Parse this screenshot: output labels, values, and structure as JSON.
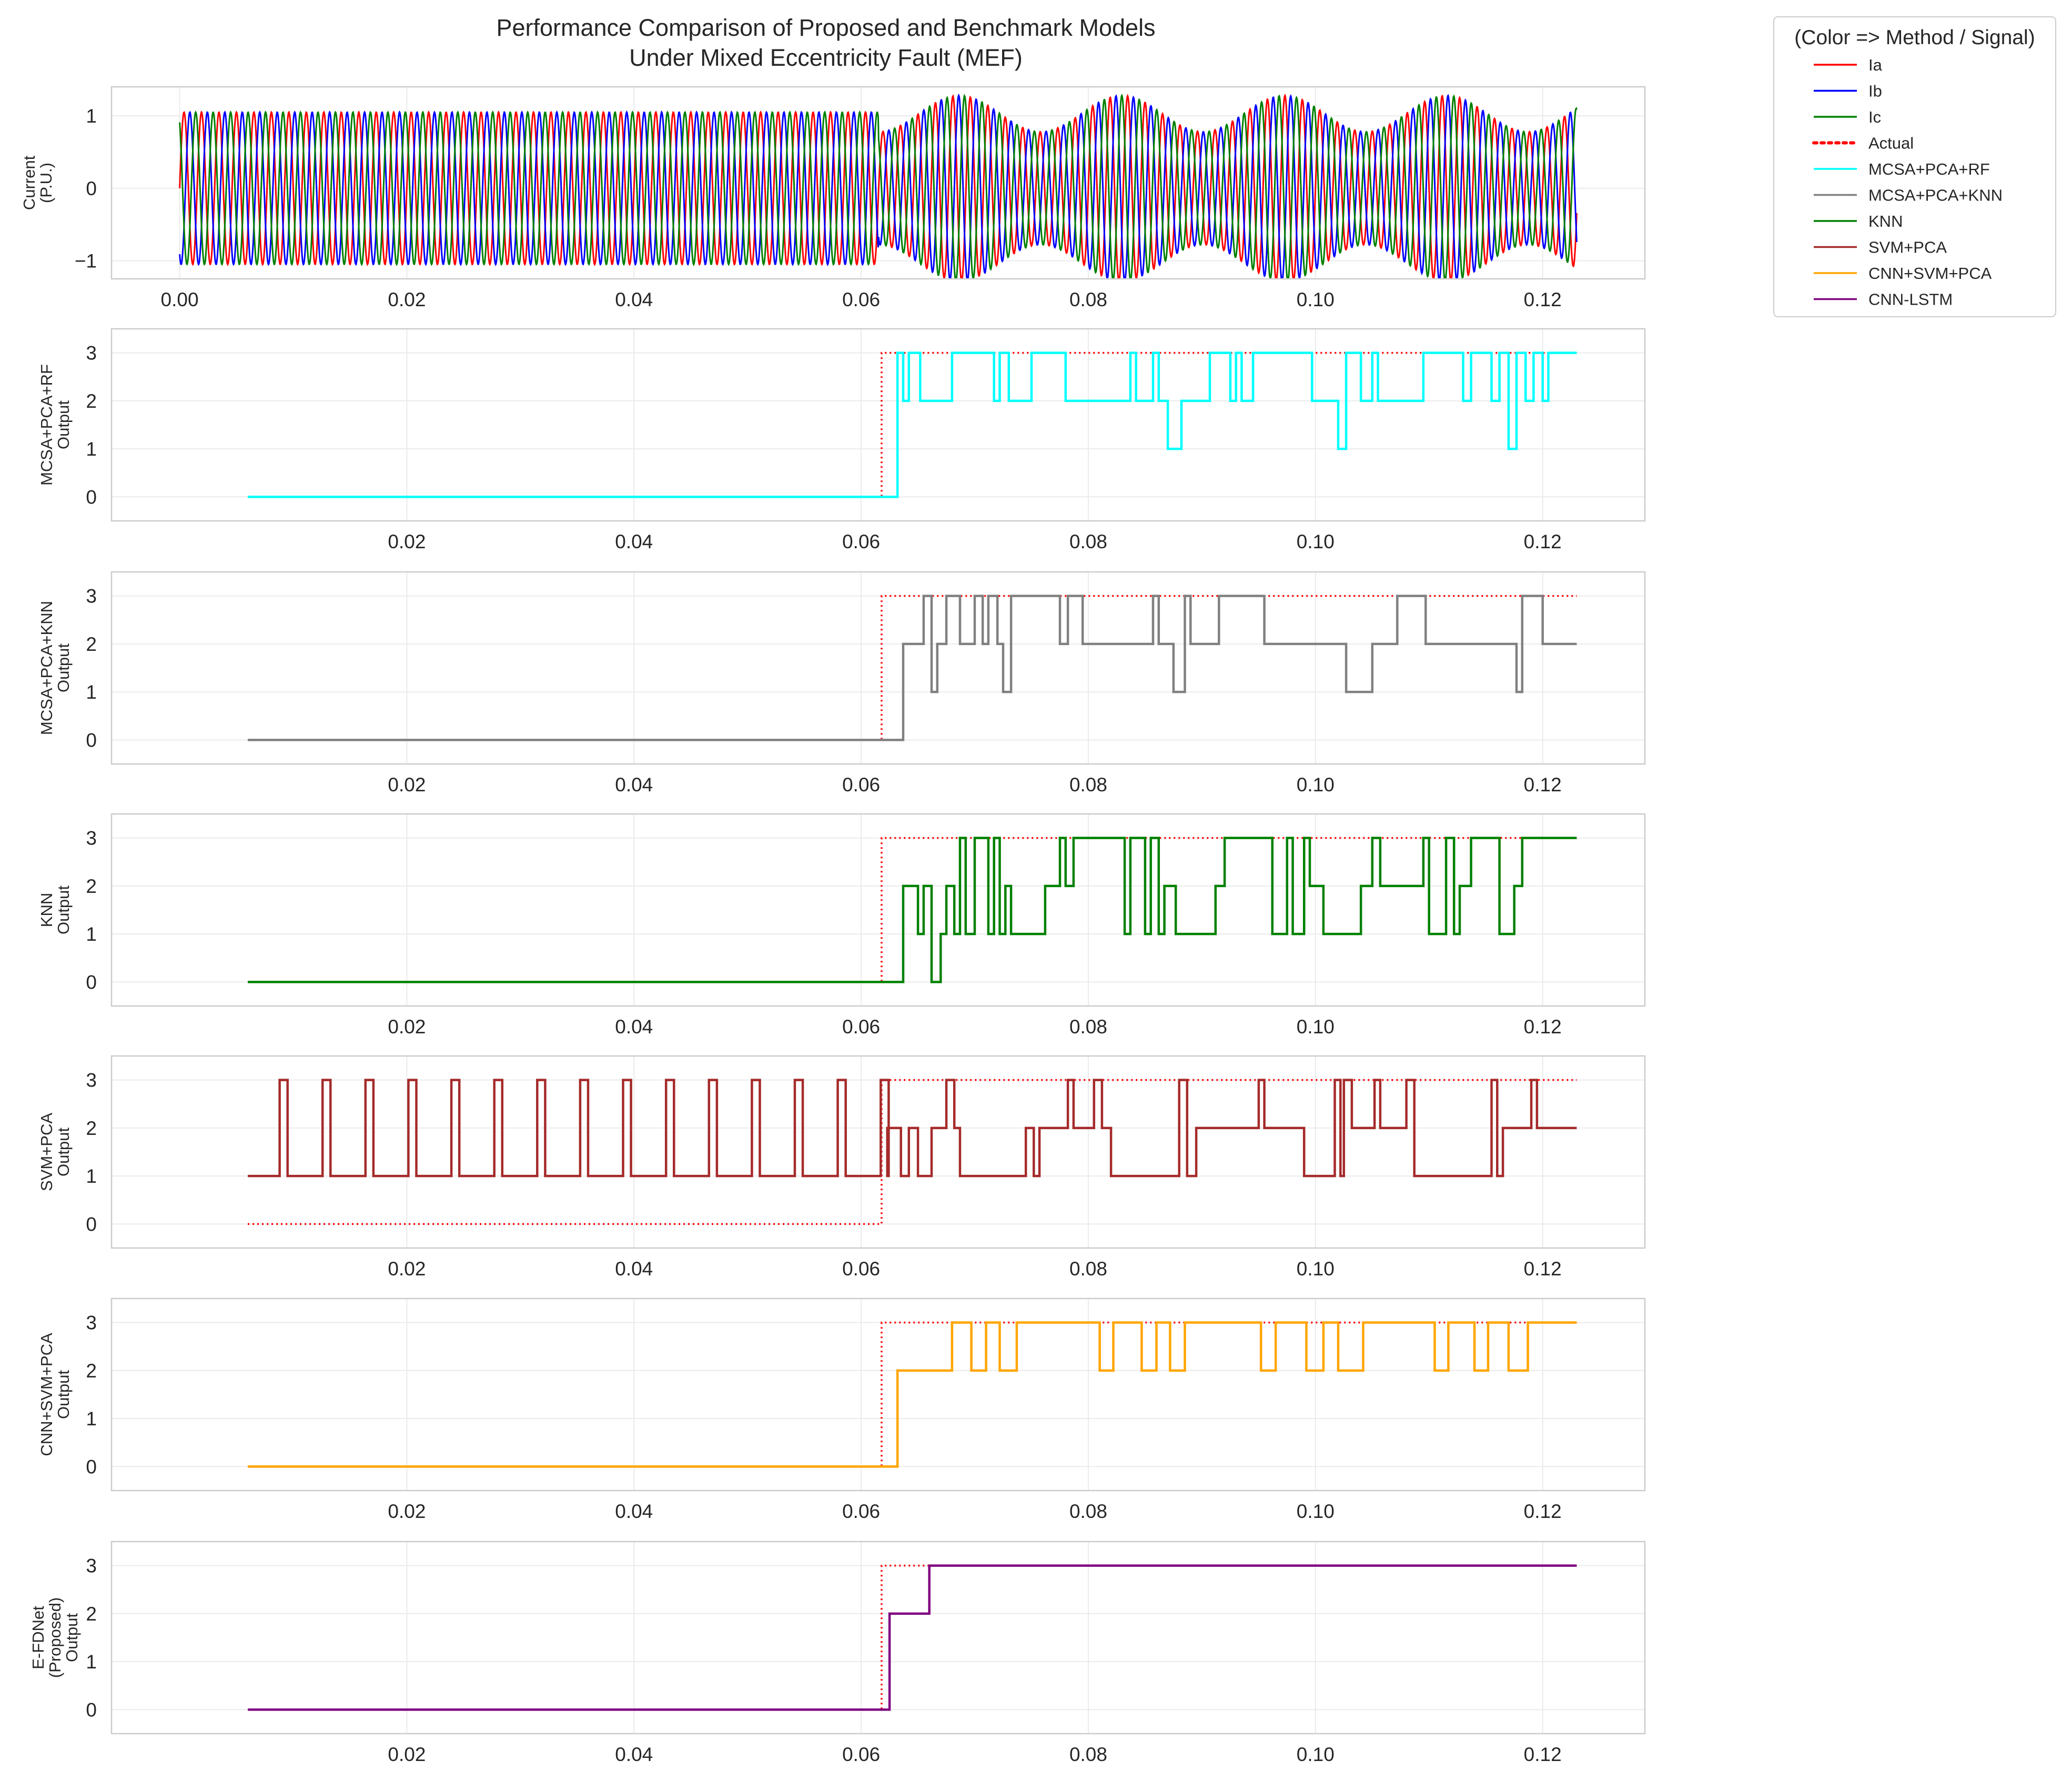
{
  "figure": {
    "title_line1": "Performance Comparison of Proposed and Benchmark Models",
    "title_line2": "Under Mixed Eccentricity Fault (MEF)"
  },
  "legend": {
    "title": "(Color => Method / Signal)",
    "entries": [
      {
        "label": "Ia",
        "color": "#ff0000",
        "style": "solid"
      },
      {
        "label": "Ib",
        "color": "#0000ff",
        "style": "solid"
      },
      {
        "label": "Ic",
        "color": "#008000",
        "style": "solid"
      },
      {
        "label": "Actual",
        "color": "#ff0000",
        "style": "dotted"
      },
      {
        "label": "MCSA+PCA+RF",
        "color": "#00ffff",
        "style": "solid"
      },
      {
        "label": "MCSA+PCA+KNN",
        "color": "#808080",
        "style": "solid"
      },
      {
        "label": "KNN",
        "color": "#008000",
        "style": "solid"
      },
      {
        "label": "SVM+PCA",
        "color": "#a52a2a",
        "style": "solid"
      },
      {
        "label": "CNN+SVM+PCA",
        "color": "#ffa500",
        "style": "solid"
      },
      {
        "label": "CNN-LSTM",
        "color": "#800080",
        "style": "solid"
      }
    ]
  },
  "chart_data": [
    {
      "type": "line",
      "id": "current",
      "ylabel_lines": [
        "Current",
        "(P.U.)"
      ],
      "xlim": [
        -0.006,
        0.129
      ],
      "ylim": [
        -1.25,
        1.4
      ],
      "xticks": [
        "0.00",
        "0.02",
        "0.04",
        "0.06",
        "0.08",
        "0.10",
        "0.12"
      ],
      "yticks": [
        "1",
        "0",
        "−1"
      ],
      "grid": true,
      "signal": {
        "x_start": 0.0,
        "x_end": 0.123,
        "frequency_hz": 650,
        "fault_onset": 0.0615,
        "healthy_amplitude": 1.05,
        "fault_amplitude_range": [
          0.78,
          1.28
        ],
        "modulation_period": 0.0143
      },
      "series": [
        {
          "name": "Ia",
          "color": "#ff0000",
          "phase_deg": -90
        },
        {
          "name": "Ib",
          "color": "#0000ff",
          "phase_deg": 150
        },
        {
          "name": "Ic",
          "color": "#008000",
          "phase_deg": 30
        }
      ]
    },
    {
      "type": "line",
      "id": "rf",
      "ylabel_lines": [
        "MCSA+PCA+RF",
        "Output"
      ],
      "color": "#00ffff",
      "xlim": [
        -0.006,
        0.129
      ],
      "ylim": [
        -0.5,
        3.5
      ],
      "xticks": [
        "0.02",
        "0.04",
        "0.06",
        "0.08",
        "0.10",
        "0.12"
      ],
      "yticks": [
        "3",
        "2",
        "1",
        "0"
      ],
      "grid": true,
      "actual": {
        "x": [
          0.006,
          0.0618,
          0.0618,
          0.123
        ],
        "y": [
          0,
          0,
          3,
          3
        ]
      },
      "x": [
        0.006,
        0.0632,
        0.0637,
        0.0642,
        0.0652,
        0.068,
        0.0717,
        0.0722,
        0.073,
        0.075,
        0.078,
        0.0837,
        0.0842,
        0.0857,
        0.0862,
        0.087,
        0.0882,
        0.0907,
        0.0925,
        0.093,
        0.0935,
        0.0945,
        0.0997,
        0.102,
        0.1027,
        0.104,
        0.105,
        0.1055,
        0.1095,
        0.113,
        0.1137,
        0.1155,
        0.1162,
        0.117,
        0.1177,
        0.1185,
        0.1192,
        0.12,
        0.1205,
        0.1215,
        0.123
      ],
      "y": [
        0,
        3,
        2,
        3,
        2,
        3,
        2,
        3,
        2,
        3,
        2,
        3,
        2,
        3,
        2,
        1,
        2,
        3,
        2,
        3,
        2,
        3,
        2,
        1,
        3,
        2,
        3,
        2,
        3,
        2,
        3,
        2,
        3,
        1,
        3,
        2,
        3,
        2,
        3,
        3,
        3
      ]
    },
    {
      "type": "line",
      "id": "knn_pca",
      "ylabel_lines": [
        "MCSA+PCA+KNN",
        "Output"
      ],
      "color": "#808080",
      "xlim": [
        -0.006,
        0.129
      ],
      "ylim": [
        -0.5,
        3.5
      ],
      "xticks": [
        "0.02",
        "0.04",
        "0.06",
        "0.08",
        "0.10",
        "0.12"
      ],
      "yticks": [
        "3",
        "2",
        "1",
        "0"
      ],
      "grid": true,
      "actual": {
        "x": [
          0.006,
          0.0618,
          0.0618,
          0.123
        ],
        "y": [
          0,
          0,
          3,
          3
        ]
      },
      "x": [
        0.006,
        0.0637,
        0.0655,
        0.0662,
        0.0667,
        0.0675,
        0.0687,
        0.07,
        0.0707,
        0.0712,
        0.072,
        0.0725,
        0.0732,
        0.0745,
        0.0775,
        0.0782,
        0.0795,
        0.0857,
        0.0862,
        0.0875,
        0.0885,
        0.089,
        0.0915,
        0.0955,
        0.1027,
        0.105,
        0.1072,
        0.1097,
        0.1177,
        0.1182,
        0.12,
        0.123
      ],
      "y": [
        0,
        2,
        3,
        1,
        2,
        3,
        2,
        3,
        2,
        3,
        2,
        1,
        3,
        3,
        2,
        3,
        2,
        3,
        2,
        1,
        3,
        2,
        3,
        2,
        1,
        2,
        3,
        2,
        1,
        3,
        2,
        2
      ]
    },
    {
      "type": "line",
      "id": "knn",
      "ylabel_lines": [
        "KNN",
        "Output"
      ],
      "color": "#008000",
      "xlim": [
        -0.006,
        0.129
      ],
      "ylim": [
        -0.5,
        3.5
      ],
      "xticks": [
        "0.02",
        "0.04",
        "0.06",
        "0.08",
        "0.10",
        "0.12"
      ],
      "yticks": [
        "3",
        "2",
        "1",
        "0"
      ],
      "grid": true,
      "actual": {
        "x": [
          0.006,
          0.0618,
          0.0618,
          0.123
        ],
        "y": [
          0,
          0,
          3,
          3
        ]
      },
      "x": [
        0.006,
        0.0637,
        0.065,
        0.0655,
        0.0662,
        0.067,
        0.0675,
        0.0682,
        0.0687,
        0.0692,
        0.07,
        0.0712,
        0.0717,
        0.0722,
        0.0727,
        0.0732,
        0.0762,
        0.0775,
        0.078,
        0.0787,
        0.0832,
        0.0837,
        0.085,
        0.0855,
        0.0862,
        0.0867,
        0.0877,
        0.0912,
        0.092,
        0.0962,
        0.0975,
        0.098,
        0.099,
        0.0995,
        0.1007,
        0.104,
        0.105,
        0.1057,
        0.1095,
        0.11,
        0.1115,
        0.1122,
        0.1127,
        0.1137,
        0.1162,
        0.1175,
        0.1182,
        0.119,
        0.123
      ],
      "y": [
        0,
        2,
        1,
        2,
        0,
        1,
        2,
        1,
        3,
        1,
        3,
        1,
        3,
        1,
        2,
        1,
        2,
        3,
        2,
        3,
        1,
        3,
        1,
        3,
        1,
        2,
        1,
        2,
        3,
        1,
        3,
        1,
        3,
        2,
        1,
        2,
        3,
        2,
        3,
        1,
        3,
        1,
        2,
        3,
        1,
        2,
        3,
        3,
        3
      ]
    },
    {
      "type": "line",
      "id": "svm",
      "ylabel_lines": [
        "SVM+PCA",
        "Output"
      ],
      "color": "#a52a2a",
      "xlim": [
        -0.006,
        0.129
      ],
      "ylim": [
        -0.5,
        3.5
      ],
      "xticks": [
        "0.02",
        "0.04",
        "0.06",
        "0.08",
        "0.10",
        "0.12"
      ],
      "yticks": [
        "3",
        "2",
        "1",
        "0"
      ],
      "grid": true,
      "actual": {
        "x": [
          0.006,
          0.0618,
          0.0618,
          0.123
        ],
        "y": [
          0,
          0,
          3,
          3
        ]
      },
      "pre_fault_spikes": {
        "start": 0.0088,
        "period": 0.00378,
        "width": 0.0007,
        "count": 15,
        "base": 1,
        "peak": 3
      },
      "x": [
        0.0623,
        0.0635,
        0.0642,
        0.065,
        0.0662,
        0.0675,
        0.0682,
        0.0687,
        0.0745,
        0.0752,
        0.0757,
        0.0765,
        0.0782,
        0.0787,
        0.0805,
        0.0812,
        0.082,
        0.088,
        0.0887,
        0.0895,
        0.093,
        0.095,
        0.0955,
        0.099,
        0.1017,
        0.1022,
        0.1025,
        0.1032,
        0.1052,
        0.1057,
        0.1075,
        0.108,
        0.1087,
        0.1155,
        0.116,
        0.1165,
        0.1185,
        0.119,
        0.1195,
        0.123
      ],
      "y": [
        2,
        1,
        2,
        1,
        2,
        3,
        2,
        1,
        2,
        1,
        2,
        2,
        3,
        2,
        3,
        2,
        1,
        3,
        1,
        2,
        2,
        3,
        2,
        1,
        3,
        1,
        3,
        2,
        3,
        2,
        2,
        3,
        1,
        3,
        1,
        2,
        2,
        3,
        2,
        2
      ]
    },
    {
      "type": "line",
      "id": "cnn_svm",
      "ylabel_lines": [
        "CNN+SVM+PCA",
        "Output"
      ],
      "color": "#ffa500",
      "xlim": [
        -0.006,
        0.129
      ],
      "ylim": [
        -0.5,
        3.5
      ],
      "xticks": [
        "0.02",
        "0.04",
        "0.06",
        "0.08",
        "0.10",
        "0.12"
      ],
      "yticks": [
        "3",
        "2",
        "1",
        "0"
      ],
      "grid": true,
      "actual": {
        "x": [
          0.006,
          0.0618,
          0.0618,
          0.123
        ],
        "y": [
          0,
          0,
          3,
          3
        ]
      },
      "x": [
        0.006,
        0.0632,
        0.068,
        0.0697,
        0.071,
        0.0722,
        0.0737,
        0.0745,
        0.081,
        0.0822,
        0.0847,
        0.086,
        0.0872,
        0.0885,
        0.0952,
        0.0965,
        0.0992,
        0.1007,
        0.102,
        0.1042,
        0.1105,
        0.1117,
        0.114,
        0.1152,
        0.117,
        0.1187,
        0.123
      ],
      "y": [
        0,
        2,
        3,
        2,
        3,
        2,
        3,
        3,
        2,
        3,
        2,
        3,
        2,
        3,
        2,
        3,
        2,
        3,
        2,
        3,
        2,
        3,
        2,
        3,
        2,
        3,
        3
      ]
    },
    {
      "type": "line",
      "id": "proposed",
      "ylabel_lines": [
        "E-FDNet",
        "(Proposed)",
        "Output"
      ],
      "color": "#800080",
      "xlim": [
        -0.006,
        0.129
      ],
      "ylim": [
        -0.5,
        3.5
      ],
      "xticks": [
        "0.02",
        "0.04",
        "0.06",
        "0.08",
        "0.10",
        "0.12"
      ],
      "yticks": [
        "3",
        "2",
        "1",
        "0"
      ],
      "grid": true,
      "actual": {
        "x": [
          0.006,
          0.0618,
          0.0618,
          0.123
        ],
        "y": [
          0,
          0,
          3,
          3
        ]
      },
      "x": [
        0.006,
        0.0625,
        0.066,
        0.123
      ],
      "y": [
        0,
        2,
        3,
        3
      ]
    }
  ]
}
